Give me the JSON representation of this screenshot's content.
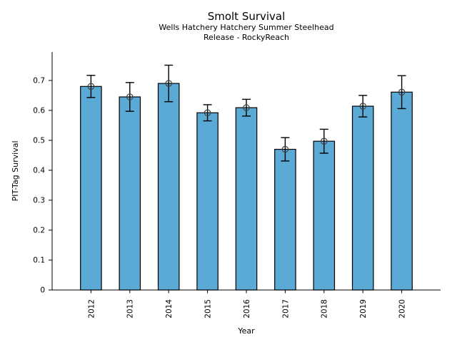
{
  "figure": {
    "background": "#ffffff"
  },
  "chart_data": {
    "type": "bar",
    "title": "Smolt Survival",
    "subtitle_lines": [
      "Wells Hatchery Hatchery Summer Steelhead",
      "Release - RockyReach"
    ],
    "xlabel": "Year",
    "ylabel": "PIT-Tag Survival",
    "categories": [
      "2012",
      "2013",
      "2014",
      "2015",
      "2016",
      "2017",
      "2018",
      "2019",
      "2020"
    ],
    "x": [
      2012,
      2013,
      2014,
      2015,
      2016,
      2017,
      2018,
      2019,
      2020
    ],
    "values": [
      0.68,
      0.645,
      0.69,
      0.592,
      0.609,
      0.47,
      0.497,
      0.614,
      0.661
    ],
    "errors": [
      0.037,
      0.048,
      0.061,
      0.027,
      0.028,
      0.039,
      0.04,
      0.036,
      0.055
    ],
    "yticks": [
      0,
      0.1,
      0.2,
      0.3,
      0.4,
      0.5,
      0.6,
      0.7
    ],
    "ytick_labels": [
      "0",
      "0.1",
      "0.2",
      "0.3",
      "0.4",
      "0.5",
      "0.6",
      "0.7"
    ],
    "ylim": [
      0,
      0.795
    ],
    "xlim": [
      2011,
      2021
    ],
    "bar_width_data_units": 0.54,
    "grid": false,
    "legend": "none",
    "marker": "open-circle",
    "colors": {
      "bar_fill": "#5BAAD5",
      "bar_edge": "#000000",
      "error_bar": "#000000",
      "marker_edge": "#404040",
      "axis": "#000000",
      "text": "#000000"
    }
  }
}
